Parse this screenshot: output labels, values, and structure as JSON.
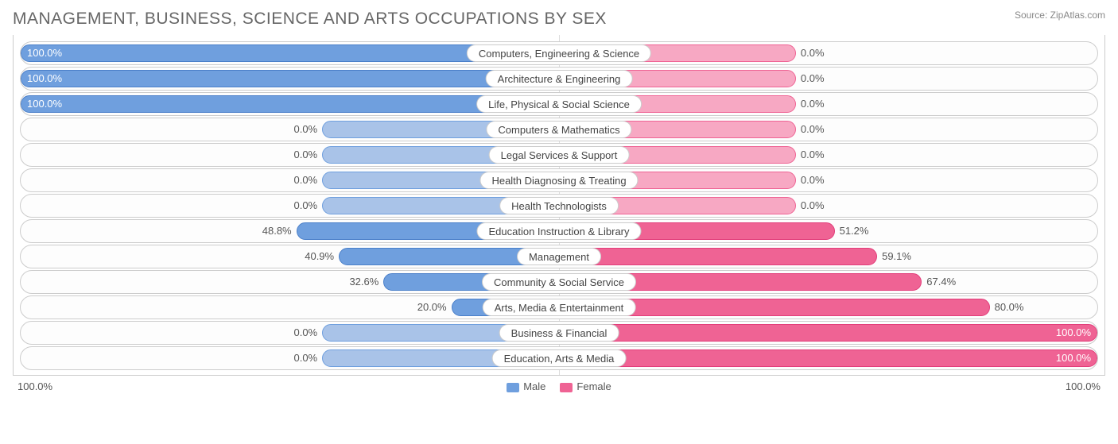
{
  "title": "MANAGEMENT, BUSINESS, SCIENCE AND ARTS OCCUPATIONS BY SEX",
  "source": "Source: ZipAtlas.com",
  "axis": {
    "left": "100.0%",
    "right": "100.0%"
  },
  "legend": {
    "male": "Male",
    "female": "Female"
  },
  "colors": {
    "male_fill": "#6f9fde",
    "male_stroke": "#4a7fc9",
    "female_fill": "#ef6394",
    "female_stroke": "#e23d7a",
    "min_bar": "#a9c3e8",
    "min_bar_f": "#f7a8c3"
  },
  "min_bar_pct": 22,
  "rows": [
    {
      "label": "Computers, Engineering & Science",
      "male": 100.0,
      "female": 0.0,
      "male_txt": "100.0%",
      "female_txt": "0.0%"
    },
    {
      "label": "Architecture & Engineering",
      "male": 100.0,
      "female": 0.0,
      "male_txt": "100.0%",
      "female_txt": "0.0%"
    },
    {
      "label": "Life, Physical & Social Science",
      "male": 100.0,
      "female": 0.0,
      "male_txt": "100.0%",
      "female_txt": "0.0%"
    },
    {
      "label": "Computers & Mathematics",
      "male": 0.0,
      "female": 0.0,
      "male_txt": "0.0%",
      "female_txt": "0.0%"
    },
    {
      "label": "Legal Services & Support",
      "male": 0.0,
      "female": 0.0,
      "male_txt": "0.0%",
      "female_txt": "0.0%"
    },
    {
      "label": "Health Diagnosing & Treating",
      "male": 0.0,
      "female": 0.0,
      "male_txt": "0.0%",
      "female_txt": "0.0%"
    },
    {
      "label": "Health Technologists",
      "male": 0.0,
      "female": 0.0,
      "male_txt": "0.0%",
      "female_txt": "0.0%"
    },
    {
      "label": "Education Instruction & Library",
      "male": 48.8,
      "female": 51.2,
      "male_txt": "48.8%",
      "female_txt": "51.2%"
    },
    {
      "label": "Management",
      "male": 40.9,
      "female": 59.1,
      "male_txt": "40.9%",
      "female_txt": "59.1%"
    },
    {
      "label": "Community & Social Service",
      "male": 32.6,
      "female": 67.4,
      "male_txt": "32.6%",
      "female_txt": "67.4%"
    },
    {
      "label": "Arts, Media & Entertainment",
      "male": 20.0,
      "female": 80.0,
      "male_txt": "20.0%",
      "female_txt": "80.0%"
    },
    {
      "label": "Business & Financial",
      "male": 0.0,
      "female": 100.0,
      "male_txt": "0.0%",
      "female_txt": "100.0%"
    },
    {
      "label": "Education, Arts & Media",
      "male": 0.0,
      "female": 100.0,
      "male_txt": "0.0%",
      "female_txt": "100.0%"
    }
  ]
}
